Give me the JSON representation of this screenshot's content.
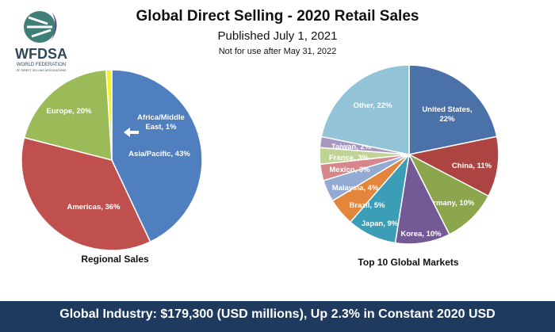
{
  "header": {
    "title": "Global Direct Selling - 2020 Retail Sales",
    "subtitle": "Published July 1, 2021",
    "note": "Not for use after May 31, 2022"
  },
  "logo": {
    "acronym": "WFDSA",
    "line1": "WORLD FEDERATION",
    "line2": "OF DIRECT SELLING ASSOCIATIONS",
    "colors": {
      "circle": "#3f7f78",
      "swoosh": "#6a3c84",
      "text": "#2f4858"
    }
  },
  "banner": {
    "text": "Global Industry: $179,300 (USD millions), Up 2.3% in Constant 2020 USD",
    "color": "#1e3a5f"
  },
  "chart_data": [
    {
      "type": "pie",
      "title": "Regional Sales",
      "start_angle_deg": 0,
      "direction": "clockwise",
      "slices": [
        {
          "label": "Asia/Pacific, 43%",
          "value": 43,
          "color": "#4f7fbe"
        },
        {
          "label": "Americas, 36%",
          "value": 36,
          "color": "#c0504d"
        },
        {
          "label": "Europe, 20%",
          "value": 20,
          "color": "#9bbb59"
        },
        {
          "label": "Africa/Middle East, 1%",
          "value": 1,
          "color": "#f5f515"
        }
      ]
    },
    {
      "type": "pie",
      "title": "Top 10 Global Markets",
      "start_angle_deg": 0,
      "direction": "clockwise",
      "slices": [
        {
          "label": "United States, 22%",
          "value": 22,
          "color": "#4a72a8"
        },
        {
          "label": "China, 11%",
          "value": 11,
          "color": "#ac4441"
        },
        {
          "label": "Germany, 10%",
          "value": 10,
          "color": "#8ba64c"
        },
        {
          "label": "Korea, 10%",
          "value": 10,
          "color": "#735a96"
        },
        {
          "label": "Japan, 9%",
          "value": 9,
          "color": "#3b9db6"
        },
        {
          "label": "Brazil, 5%",
          "value": 5,
          "color": "#e3853a"
        },
        {
          "label": "Malaysia, 4%",
          "value": 4,
          "color": "#93aad2"
        },
        {
          "label": "Mexico, 3%",
          "value": 3,
          "color": "#d7878a"
        },
        {
          "label": "France, 3%",
          "value": 3,
          "color": "#bfd396"
        },
        {
          "label": "Taiwan, 2%",
          "value": 2,
          "color": "#a897c1"
        },
        {
          "label": "Other, 22%",
          "value": 22,
          "color": "#92c3d7"
        }
      ]
    }
  ]
}
